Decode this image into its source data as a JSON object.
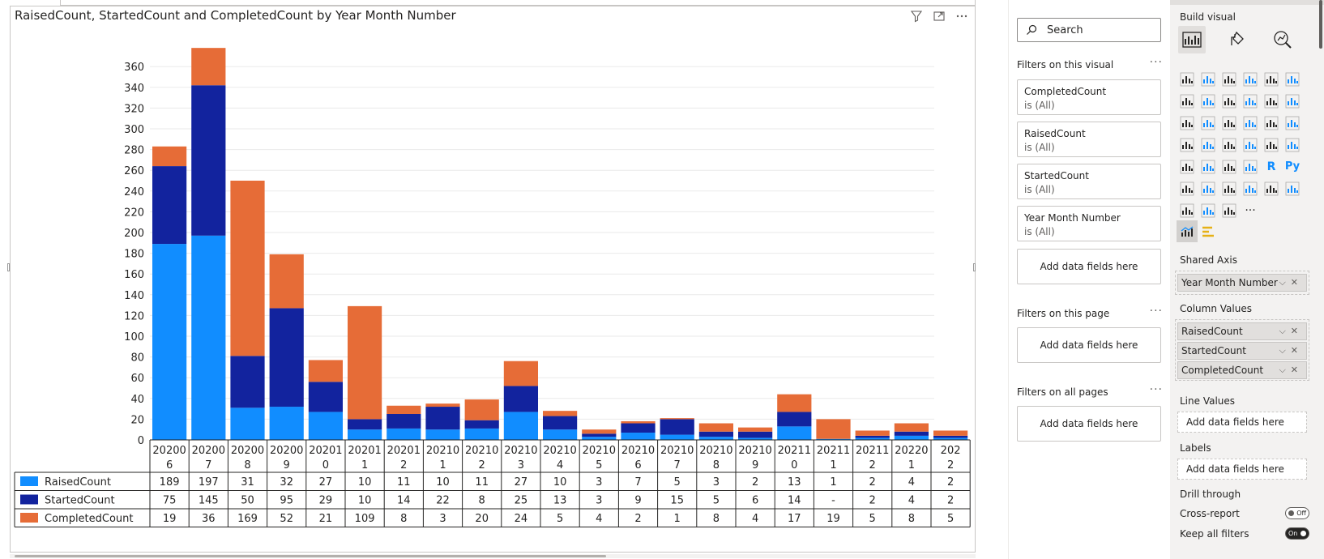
{
  "visual": {
    "title": "RaisedCount, StartedCount and CompletedCount by Year Month Number"
  },
  "chart_data": {
    "type": "bar",
    "stacked": true,
    "title": "RaisedCount, StartedCount and CompletedCount by Year Month Number",
    "categories": [
      [
        "20200",
        "6"
      ],
      [
        "20200",
        "7"
      ],
      [
        "20200",
        "8"
      ],
      [
        "20200",
        "9"
      ],
      [
        "20201",
        "0"
      ],
      [
        "20201",
        "1"
      ],
      [
        "20201",
        "2"
      ],
      [
        "20210",
        "1"
      ],
      [
        "20210",
        "2"
      ],
      [
        "20210",
        "3"
      ],
      [
        "20210",
        "4"
      ],
      [
        "20210",
        "5"
      ],
      [
        "20210",
        "6"
      ],
      [
        "20210",
        "7"
      ],
      [
        "20210",
        "8"
      ],
      [
        "20210",
        "9"
      ],
      [
        "20211",
        "0"
      ],
      [
        "20211",
        "1"
      ],
      [
        "20211",
        "2"
      ],
      [
        "20220",
        "1"
      ],
      [
        "202",
        "2"
      ]
    ],
    "series": [
      {
        "name": "RaisedCount",
        "color": "#118dff",
        "values": [
          189,
          197,
          31,
          32,
          27,
          10,
          11,
          10,
          11,
          27,
          10,
          3,
          7,
          5,
          3,
          2,
          13,
          1,
          2,
          4,
          2
        ],
        "labels": [
          "189",
          "197",
          "31",
          "32",
          "27",
          "10",
          "11",
          "10",
          "11",
          "27",
          "10",
          "3",
          "7",
          "5",
          "3",
          "2",
          "13",
          "1",
          "2",
          "4",
          "2"
        ]
      },
      {
        "name": "StartedCount",
        "color": "#12239e",
        "values": [
          75,
          145,
          50,
          95,
          29,
          10,
          14,
          22,
          8,
          25,
          13,
          3,
          9,
          15,
          5,
          6,
          14,
          0,
          2,
          4,
          2
        ],
        "labels": [
          "75",
          "145",
          "50",
          "95",
          "29",
          "10",
          "14",
          "22",
          "8",
          "25",
          "13",
          "3",
          "9",
          "15",
          "5",
          "6",
          "14",
          "-",
          "2",
          "4",
          "2"
        ]
      },
      {
        "name": "CompletedCount",
        "color": "#e66c37",
        "values": [
          19,
          36,
          169,
          52,
          21,
          109,
          8,
          3,
          20,
          24,
          5,
          4,
          2,
          1,
          8,
          4,
          17,
          19,
          5,
          8,
          5
        ],
        "labels": [
          "19",
          "36",
          "169",
          "52",
          "21",
          "109",
          "8",
          "3",
          "20",
          "24",
          "5",
          "4",
          "2",
          "1",
          "8",
          "4",
          "17",
          "19",
          "5",
          "8",
          "5"
        ]
      }
    ],
    "y_ticks": [
      "0",
      "20",
      "40",
      "60",
      "80",
      "100",
      "120",
      "140",
      "160",
      "180",
      "200",
      "220",
      "240",
      "260",
      "280",
      "300",
      "320",
      "340",
      "360"
    ],
    "ylim": [
      0,
      380
    ],
    "grid": true,
    "legend_placement": "bottom-left-table"
  },
  "filters": {
    "search_placeholder": "Search",
    "visual_header": "Filters on this visual",
    "visual_filters": [
      {
        "name": "CompletedCount",
        "state": "is (All)"
      },
      {
        "name": "RaisedCount",
        "state": "is (All)"
      },
      {
        "name": "StartedCount",
        "state": "is (All)"
      },
      {
        "name": "Year Month Number",
        "state": "is (All)"
      }
    ],
    "add_fields": "Add data fields here",
    "page_header": "Filters on this page",
    "all_pages_header": "Filters on all pages"
  },
  "viz": {
    "build_visual": "Build visual",
    "shared_axis_label": "Shared Axis",
    "shared_axis_field": "Year Month Number",
    "column_values_label": "Column Values",
    "column_values": [
      "RaisedCount",
      "StartedCount",
      "CompletedCount"
    ],
    "line_values_label": "Line Values",
    "labels_label": "Labels",
    "add_fields": "Add data fields here",
    "drill_through_label": "Drill through",
    "cross_report_label": "Cross-report",
    "cross_report_state": "Off",
    "keep_filters_label": "Keep all filters",
    "keep_filters_state": "On"
  }
}
